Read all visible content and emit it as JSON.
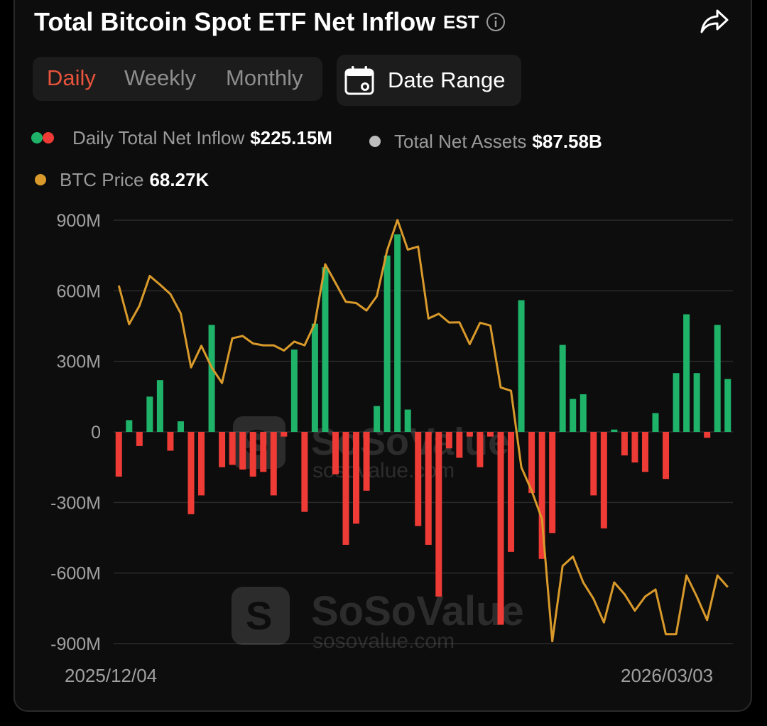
{
  "header": {
    "title": "Total Bitcoin Spot ETF Net Inflow",
    "timezone": "EST",
    "icons": {
      "info": "info-icon",
      "share": "share-icon",
      "calendar": "calendar-icon"
    }
  },
  "tabs": [
    {
      "label": "Daily",
      "active": true
    },
    {
      "label": "Weekly",
      "active": false
    },
    {
      "label": "Monthly",
      "active": false
    }
  ],
  "date_range": {
    "label": "Date Range"
  },
  "legend": {
    "inflow": {
      "label": "Daily Total Net Inflow",
      "value": "$225.15M"
    },
    "assets": {
      "label": "Total Net Assets",
      "value": "$87.58B"
    },
    "price": {
      "label": "BTC Price",
      "value": "68.27K"
    }
  },
  "watermark": {
    "brand": "SoSoValue",
    "url": "sosovalue.com"
  },
  "colors": {
    "positive": "#1fb36a",
    "negative": "#ef3b36",
    "price_line": "#d99a2b",
    "active_tab": "#e8533b",
    "grid": "#2b2b2b",
    "assets_dot": "#bdbdbd"
  },
  "chart_data": {
    "type": "bar",
    "title": "Total Bitcoin Spot ETF Net Inflow",
    "y_ticks": [
      "900M",
      "600M",
      "300M",
      "0",
      "-300M",
      "-600M",
      "-900M"
    ],
    "ylim": [
      -900,
      900
    ],
    "y_unit": "USD millions",
    "x_start_label": "2025/12/04",
    "x_end_label": "2026/03/03",
    "grid": true,
    "series": [
      {
        "name": "Daily Total Net Inflow",
        "kind": "bar",
        "values": [
          -190,
          50,
          -60,
          150,
          220,
          -80,
          45,
          -350,
          -270,
          455,
          -150,
          -140,
          -160,
          -190,
          -170,
          -270,
          -20,
          350,
          -340,
          460,
          700,
          -180,
          -480,
          -390,
          -250,
          110,
          750,
          840,
          95,
          -400,
          -480,
          -700,
          -70,
          -110,
          -20,
          -150,
          -20,
          -820,
          -510,
          560,
          -260,
          -540,
          -430,
          370,
          140,
          160,
          -270,
          -410,
          10,
          -100,
          -130,
          -170,
          80,
          -200,
          250,
          500,
          250,
          -25,
          455,
          225
        ]
      },
      {
        "name": "BTC Price",
        "kind": "line",
        "values": [
          622,
          458,
          536,
          663,
          626,
          586,
          504,
          274,
          366,
          274,
          208,
          398,
          408,
          376,
          368,
          368,
          346,
          384,
          368,
          462,
          713,
          633,
          553,
          548,
          516,
          577,
          772,
          901,
          775,
          788,
          482,
          502,
          465,
          466,
          373,
          464,
          452,
          189,
          175,
          -150,
          -250,
          -370,
          -890,
          -570,
          -530,
          -640,
          -710,
          -810,
          -640,
          -690,
          -760,
          -700,
          -670,
          -860,
          -860,
          -610,
          -700,
          -800,
          -610,
          -660
        ]
      }
    ]
  }
}
